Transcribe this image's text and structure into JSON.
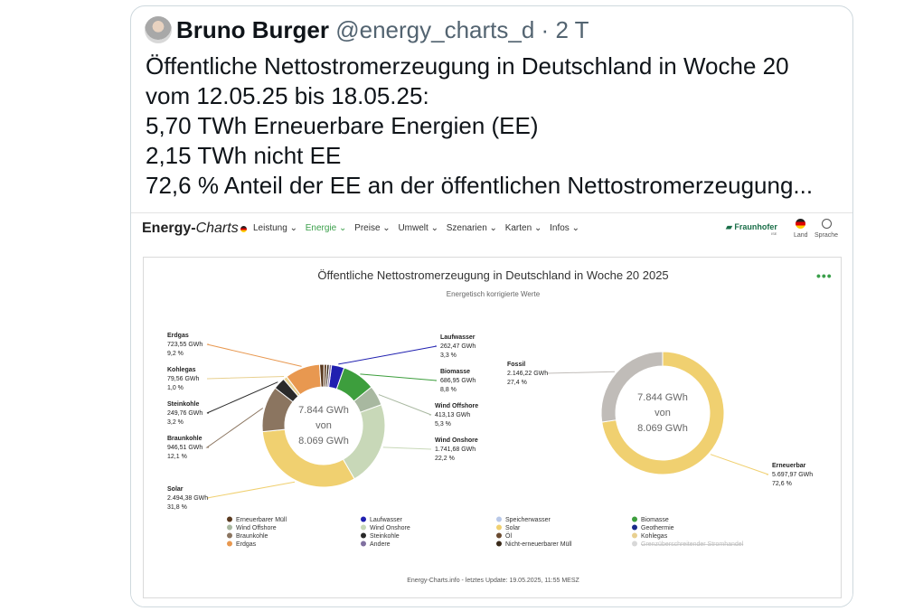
{
  "tweet": {
    "author_name": "Bruno Burger",
    "handle": "@energy_charts_d",
    "separator": "·",
    "time": "2 T",
    "lines": [
      "Öffentliche Nettostromerzeugung in Deutschland in Woche 20",
      "vom 12.05.25 bis 18.05.25:",
      "5,70 TWh Erneuerbare Energien (EE)",
      "2,15 TWh nicht EE",
      "72,6 % Anteil der EE an der öffentlichen Nettostromerzeugung..."
    ]
  },
  "site": {
    "logo_bold": "Energy-",
    "logo_thin": "Charts",
    "menu": [
      "Leistung ⌄",
      "Energie ⌄",
      "Preise ⌄",
      "Umwelt ⌄",
      "Szenarien ⌄",
      "Karten ⌄",
      "Infos ⌄"
    ],
    "active_menu_index": 1,
    "brand": "Fraunhofer",
    "brand_sub": "ISE",
    "land_label": "Land",
    "language_label": "Sprache",
    "menu_dots": "•••"
  },
  "chart_data": [
    {
      "type": "pie",
      "title": "Öffentliche Nettostromerzeugung in Deutschland in Woche 20 2025",
      "subtitle": "Energetisch korrigierte Werte",
      "center_text": [
        "7.844 GWh",
        "von",
        "8.069 GWh"
      ],
      "slices": [
        {
          "name": "Laufwasser",
          "value": 262.47,
          "label": [
            "Laufwasser",
            "262,47 GWh",
            "3,3 %"
          ],
          "color": "#2020b0"
        },
        {
          "name": "Biomasse",
          "value": 686.95,
          "label": [
            "Biomasse",
            "686,95 GWh",
            "8,8 %"
          ],
          "color": "#3d9e3d"
        },
        {
          "name": "Wind Offshore",
          "value": 413.13,
          "label": [
            "Wind Offshore",
            "413,13 GWh",
            "5,3 %"
          ],
          "color": "#a8b8a0"
        },
        {
          "name": "Wind Onshore",
          "value": 1741.68,
          "label": [
            "Wind Onshore",
            "1.741,68 GWh",
            "22,2 %"
          ],
          "color": "#c8d8b8"
        },
        {
          "name": "Solar",
          "value": 2494.38,
          "label": [
            "Solar",
            "2.494,38 GWh",
            "31,8 %"
          ],
          "color": "#f0d070"
        },
        {
          "name": "Braunkohle",
          "value": 946.51,
          "label": [
            "Braunkohle",
            "946,51 GWh",
            "12,1 %"
          ],
          "color": "#8b7560"
        },
        {
          "name": "Steinkohle",
          "value": 249.76,
          "label": [
            "Steinkohle",
            "249,76 GWh",
            "3,2 %"
          ],
          "color": "#2a2a2a"
        },
        {
          "name": "Kohlegas",
          "value": 79.56,
          "label": [
            "Kohlegas",
            "79,56 GWh",
            "1,0 %"
          ],
          "color": "#e8d090"
        },
        {
          "name": "Erdgas",
          "value": 723.55,
          "label": [
            "Erdgas",
            "723,55 GWh",
            "9,2 %"
          ],
          "color": "#e89850"
        },
        {
          "name": "Erneuerbarer Müll",
          "value": 90,
          "color": "#5a3a20"
        },
        {
          "name": "Öl",
          "value": 60,
          "color": "#6a4a30"
        },
        {
          "name": "Nicht-erneuerbarer Müll",
          "value": 50,
          "color": "#3a2a1a"
        },
        {
          "name": "Andere",
          "value": 45,
          "color": "#8070a0"
        }
      ]
    },
    {
      "type": "pie",
      "center_text": [
        "7.844 GWh",
        "von",
        "8.069 GWh"
      ],
      "slices": [
        {
          "name": "Erneuerbar",
          "value": 5697.97,
          "label": [
            "Erneuerbar",
            "5.697,97 GWh",
            "72,6 %"
          ],
          "color": "#f0d070"
        },
        {
          "name": "Fossil",
          "value": 2146.22,
          "label": [
            "Fossil",
            "2.146,22 GWh",
            "27,4 %"
          ],
          "color": "#c0bcb8"
        }
      ]
    }
  ],
  "legend": [
    {
      "label": "Erneuerbarer Müll",
      "color": "#5a3a20"
    },
    {
      "label": "Laufwasser",
      "color": "#2020b0"
    },
    {
      "label": "Speicherwasser",
      "color": "#b8c8e8"
    },
    {
      "label": "Biomasse",
      "color": "#3d9e3d"
    },
    {
      "label": "Wind Offshore",
      "color": "#a8b8a0"
    },
    {
      "label": "Wind Onshore",
      "color": "#c8d8b8"
    },
    {
      "label": "Solar",
      "color": "#f0d070"
    },
    {
      "label": "Geothermie",
      "color": "#1a2a8a"
    },
    {
      "label": "Braunkohle",
      "color": "#8b7560"
    },
    {
      "label": "Steinkohle",
      "color": "#2a2a2a"
    },
    {
      "label": "Öl",
      "color": "#6a4a30"
    },
    {
      "label": "Kohlegas",
      "color": "#e8d090"
    },
    {
      "label": "Erdgas",
      "color": "#e89850"
    },
    {
      "label": "Andere",
      "color": "#8070a0"
    },
    {
      "label": "Nicht-erneuerbarer Müll",
      "color": "#3a2a1a"
    },
    {
      "label": "Grenzüberschreitender Stromhandel",
      "color": "#d8d8d8",
      "disabled": true
    }
  ],
  "footer": "Energy-Charts.info - letztes Update: 19.05.2025, 11:55 MESZ"
}
